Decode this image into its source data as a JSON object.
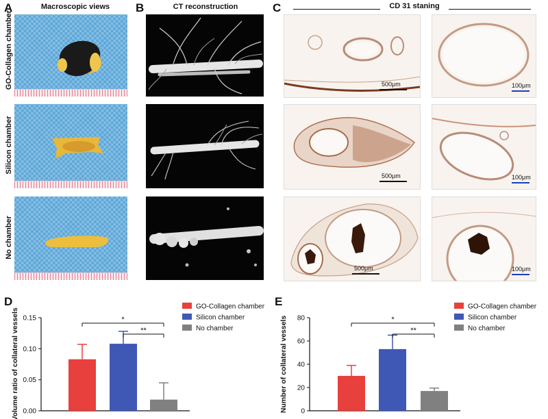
{
  "panels": {
    "A": {
      "letter": "A",
      "title": "Macroscopic views"
    },
    "B": {
      "letter": "B",
      "title": "CT reconstruction"
    },
    "C": {
      "letter": "C",
      "title": "CD 31 staning"
    },
    "D": {
      "letter": "D"
    },
    "E": {
      "letter": "E"
    }
  },
  "row_labels": [
    "GO-Collagen chamber",
    "Silicon chamber",
    "No chamber"
  ],
  "scale_labels": {
    "large": "500μm",
    "small": "100μm"
  },
  "colors": {
    "go_collagen": "#e8403c",
    "silicon": "#3f57b5",
    "no_chamber": "#808080",
    "stain_brown": "#8a4a22"
  },
  "chart_data": [
    {
      "type": "bar",
      "panel": "D",
      "categories": [
        "GO-Collagen chamber",
        "Silicon chamber",
        "No chamber"
      ],
      "values": [
        0.083,
        0.108,
        0.018
      ],
      "errors": [
        0.024,
        0.02,
        0.027
      ],
      "colors": [
        "#e8403c",
        "#3f57b5",
        "#808080"
      ],
      "ylabel": "Volume ratio of collateral vessels",
      "ylim": [
        0,
        0.15
      ],
      "yticks": [
        "0.00",
        "0.05",
        "0.10",
        "0.15"
      ],
      "legend": [
        "GO-Collagen chamber",
        "Silicon chamber",
        "No chamber"
      ],
      "legend_position": "top-right",
      "significance": [
        {
          "from": 0,
          "to": 2,
          "label": "*"
        },
        {
          "from": 1,
          "to": 2,
          "label": "**"
        }
      ]
    },
    {
      "type": "bar",
      "panel": "E",
      "categories": [
        "GO-Collagen chamber",
        "Silicon chamber",
        "No chamber"
      ],
      "values": [
        30,
        53,
        17
      ],
      "errors": [
        9,
        12,
        2.5
      ],
      "colors": [
        "#e8403c",
        "#3f57b5",
        "#808080"
      ],
      "ylabel": "Number of collateral vessels",
      "ylim": [
        0,
        80
      ],
      "yticks": [
        "0",
        "20",
        "40",
        "60",
        "80"
      ],
      "legend": [
        "GO-Collagen chamber",
        "Silicon chamber",
        "No chamber"
      ],
      "legend_position": "top-right",
      "significance": [
        {
          "from": 0,
          "to": 2,
          "label": "*"
        },
        {
          "from": 1,
          "to": 2,
          "label": "**"
        }
      ]
    }
  ]
}
